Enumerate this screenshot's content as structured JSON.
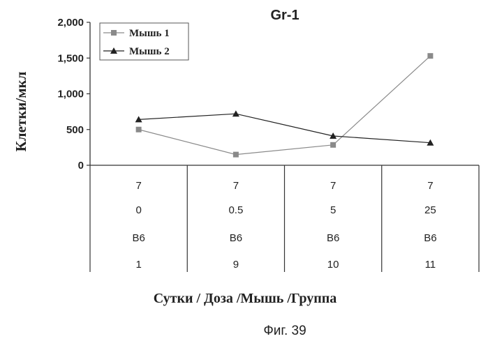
{
  "chart_data": {
    "type": "line",
    "title": "Gr-1",
    "ylabel": "Клетки/мкл",
    "xlabel": "Сутки / Доза /Мышь /Группа",
    "ylim": [
      0,
      2000
    ],
    "yticks": [
      "0",
      "500",
      "1,000",
      "1,500",
      "2,000"
    ],
    "ytick_values": [
      0,
      500,
      1000,
      1500,
      2000
    ],
    "grid": false,
    "legend_position": "top-left",
    "category_rows": [
      [
        "7",
        "7",
        "7",
        "7"
      ],
      [
        "0",
        "0.5",
        "5",
        "25"
      ],
      [
        "B6",
        "B6",
        "B6",
        "B6"
      ],
      [
        "1",
        "9",
        "10",
        "11"
      ]
    ],
    "series": [
      {
        "name": "Мышь 1",
        "marker": "square",
        "color": "#8a8a8a",
        "values": [
          500,
          150,
          285,
          1530
        ]
      },
      {
        "name": "Мышь 2",
        "marker": "triangle",
        "color": "#222222",
        "values": [
          640,
          720,
          410,
          315
        ]
      }
    ]
  },
  "caption": "Фиг. 39"
}
